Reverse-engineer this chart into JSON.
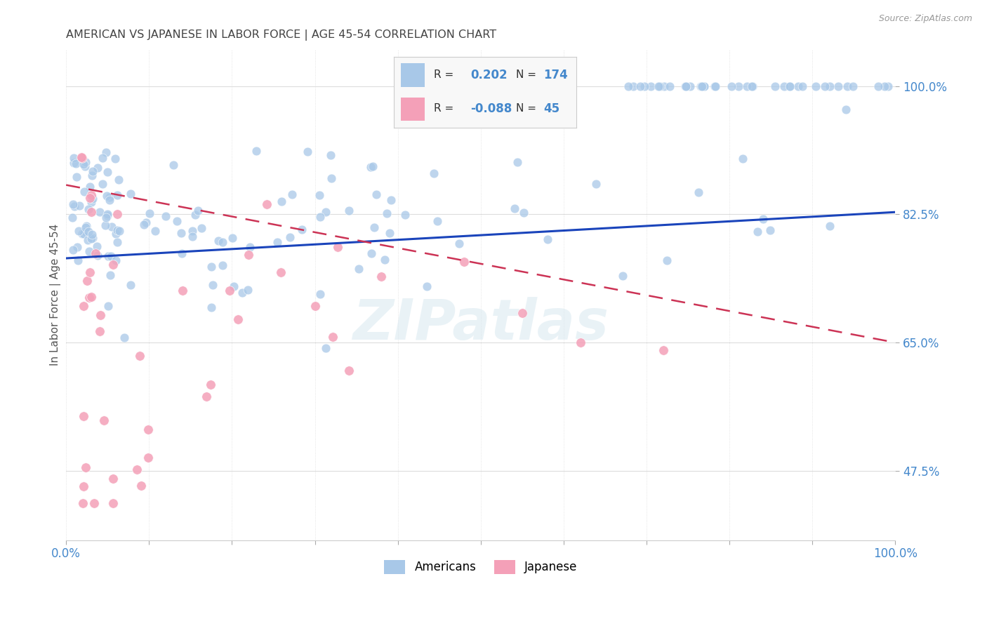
{
  "title": "AMERICAN VS JAPANESE IN LABOR FORCE | AGE 45-54 CORRELATION CHART",
  "source": "Source: ZipAtlas.com",
  "ylabel": "In Labor Force | Age 45-54",
  "xlim": [
    0.0,
    1.0
  ],
  "ylim": [
    0.38,
    1.05
  ],
  "yticks": [
    0.475,
    0.65,
    0.825,
    1.0
  ],
  "ytick_labels": [
    "47.5%",
    "65.0%",
    "82.5%",
    "100.0%"
  ],
  "american_R": 0.202,
  "american_N": 174,
  "japanese_R": -0.088,
  "japanese_N": 45,
  "american_color": "#a8c8e8",
  "japanese_color": "#f4a0b8",
  "american_line_color": "#1a44bb",
  "japanese_line_color": "#cc3355",
  "title_color": "#444444",
  "axis_label_color": "#555555",
  "tick_color": "#4488cc",
  "grid_color": "#dddddd",
  "watermark": "ZIPatlas",
  "am_line_y0": 0.765,
  "am_line_y1": 0.828,
  "jp_line_y0": 0.865,
  "jp_line_y1": 0.65
}
